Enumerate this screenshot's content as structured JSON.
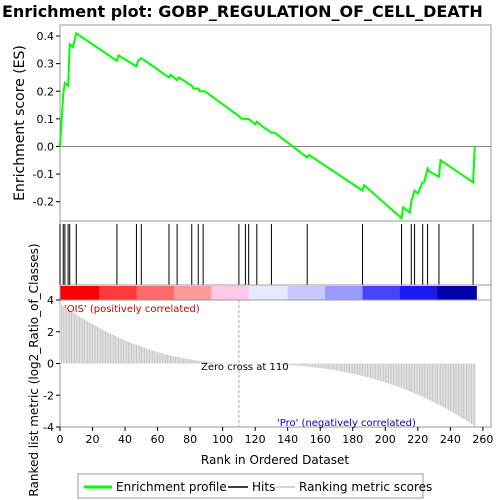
{
  "chart_data": {
    "type": "line",
    "title": "Enrichment plot: GOBP_REGULATION_OF_CELL_DEATH",
    "es_panel": {
      "ylabel": "Enrichment score (ES)",
      "ylim": [
        -0.27,
        0.44
      ],
      "yticks": [
        -0.2,
        -0.1,
        0.0,
        0.1,
        0.2,
        0.3,
        0.4
      ],
      "x": [
        0,
        2,
        3,
        5,
        6,
        8,
        10,
        35,
        36,
        47,
        48,
        50,
        67,
        68,
        72,
        73,
        81,
        82,
        85,
        86,
        88,
        89,
        110,
        112,
        114,
        116,
        120,
        121,
        125,
        130,
        132,
        152,
        153,
        186,
        187,
        210,
        211,
        215,
        216,
        218,
        220,
        223,
        224,
        226,
        227,
        233,
        234,
        254,
        255
      ],
      "y": [
        0.0,
        0.19,
        0.23,
        0.22,
        0.37,
        0.36,
        0.41,
        0.31,
        0.33,
        0.29,
        0.31,
        0.32,
        0.25,
        0.26,
        0.24,
        0.25,
        0.22,
        0.21,
        0.21,
        0.2,
        0.2,
        0.2,
        0.11,
        0.1,
        0.1,
        0.1,
        0.08,
        0.09,
        0.07,
        0.05,
        0.05,
        -0.04,
        -0.03,
        -0.16,
        -0.14,
        -0.26,
        -0.22,
        -0.24,
        -0.2,
        -0.16,
        -0.17,
        -0.13,
        -0.13,
        -0.08,
        -0.09,
        -0.11,
        -0.05,
        -0.13,
        0.0
      ],
      "color": "#00ff00"
    },
    "hits": [
      0,
      2,
      3,
      5,
      6,
      10,
      35,
      47,
      50,
      67,
      72,
      81,
      85,
      88,
      110,
      114,
      116,
      121,
      130,
      152,
      186,
      210,
      216,
      218,
      223,
      226,
      233,
      254
    ],
    "heat_colors": [
      "#ff0000",
      "#ff3a3a",
      "#ff6a6a",
      "#ff9a9a",
      "#ffc8e8",
      "#e8e8ff",
      "#c8c8ff",
      "#9a9aff",
      "#4444ff",
      "#1a1aee",
      "#0000aa"
    ],
    "ranked_panel": {
      "ylabel": "Ranked list metric (log2_Ratio_of_Classes)",
      "ylim": [
        -4,
        4
      ],
      "yticks": [
        -4,
        -2,
        0,
        2,
        4
      ],
      "metric_max": 3.6,
      "metric_min": -3.8
    },
    "xlabel": "Rank in Ordered Dataset",
    "xlim": [
      0,
      265
    ],
    "xticks": [
      0,
      20,
      40,
      60,
      80,
      100,
      120,
      140,
      160,
      180,
      200,
      220,
      240,
      260
    ],
    "n_genes": 256,
    "zero_cross": 110,
    "annotations": {
      "zero_cross_label": "Zero cross at 110",
      "pos_label": "'OIS' (positively correlated)",
      "neg_label": "'Pro' (negatively correlated)"
    },
    "legend": {
      "position": "bottom",
      "items": [
        {
          "label": "Enrichment profile",
          "color": "#00ff00"
        },
        {
          "label": "Hits",
          "color": "#000000"
        },
        {
          "label": "Ranking metric scores",
          "color": "#c8c8c8"
        }
      ]
    }
  }
}
